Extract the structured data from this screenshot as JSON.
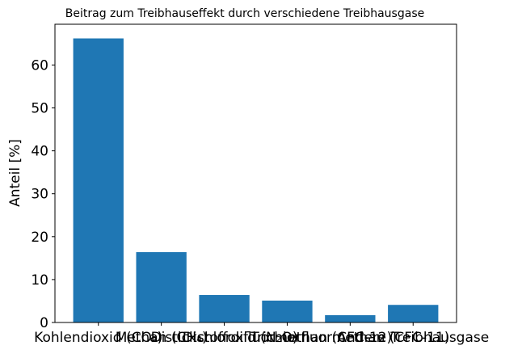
{
  "chart_data": {
    "type": "bar",
    "title": "Beitrag zum Treibhauseffekt durch verschiedene Treibhausgase",
    "xlabel": "",
    "ylabel": "Anteil [%]",
    "categories": [
      "Kohlendioxid (CO₂)",
      "Methan (CH₄)",
      "Distickstoffoxid (N₂O)",
      "Dichlordifluormethan (CFC-12)",
      "Trichlorfluormethan (CFC-11)",
      "Andere Treibhausgase"
    ],
    "values": [
      66.2,
      16.4,
      6.4,
      5.1,
      1.7,
      4.1
    ],
    "ylim": [
      0,
      69.5
    ],
    "yticks": [
      0,
      10,
      20,
      30,
      40,
      50,
      60
    ],
    "bar_color": "#1f77b4",
    "grid": false,
    "legend": "none"
  }
}
